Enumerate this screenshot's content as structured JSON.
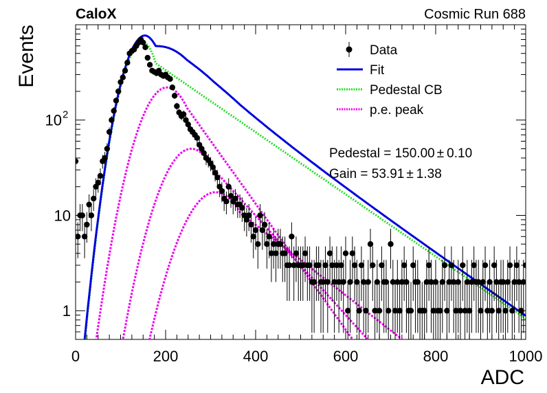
{
  "header": {
    "experiment": "CaloX",
    "run_label": "Cosmic Run 688"
  },
  "chart_data": {
    "type": "scatter",
    "xlabel": "ADC",
    "ylabel": "Events",
    "xlim": [
      0,
      1000
    ],
    "ylim": [
      0.5,
      1000
    ],
    "y_scale": "log",
    "x_ticks": [
      0,
      200,
      400,
      600,
      800,
      1000
    ],
    "x_tick_labels": [
      "0",
      "200",
      "400",
      "600",
      "800",
      "1000"
    ],
    "y_ticks": [
      1,
      10,
      100
    ],
    "y_tick_labels": [
      "1",
      "10",
      "10",
      "2"
    ],
    "y_tick_labels_display": [
      {
        "value": 1,
        "text": "1"
      },
      {
        "value": 10,
        "text": "10"
      },
      {
        "value": 100,
        "base": "10",
        "exp": "2"
      }
    ],
    "legend": {
      "placement": "top-right",
      "entries": [
        {
          "label": "Data",
          "style": "marker",
          "color": "#000000"
        },
        {
          "label": "Fit",
          "style": "line",
          "color": "#0000dd"
        },
        {
          "label": "Pedestal CB",
          "style": "dotted",
          "color": "#22dd22"
        },
        {
          "label": "p.e. peak",
          "style": "dotted",
          "color": "#ee00ee"
        }
      ]
    },
    "annotations": [
      {
        "label": "Pedestal = 150.00",
        "pm": "±",
        "err": "0.10"
      },
      {
        "label": "Gain = 53.91",
        "pm": "±",
        "err": "1.38"
      }
    ],
    "fit_params": {
      "pedestal": 150.0,
      "gain": 53.91,
      "pedestal_amplitude": 650,
      "pedestal_sigma_left": 34,
      "pedestal_sigma_right": 28,
      "pedestal_tail_slope": 0.0075,
      "pe_peaks": [
        {
          "mu": 203,
          "sigma": 45,
          "amp": 220,
          "tail_slope": 0.0152
        },
        {
          "mu": 257,
          "sigma": 50,
          "amp": 50,
          "tail_slope": 0.012
        },
        {
          "mu": 311,
          "sigma": 55,
          "amp": 17.5,
          "tail_slope": 0.0085
        }
      ]
    },
    "series": [
      {
        "name": "Data",
        "x": [
          0,
          5,
          10,
          15,
          20,
          25,
          30,
          35,
          40,
          45,
          50,
          55,
          60,
          65,
          70,
          75,
          80,
          85,
          90,
          95,
          100,
          105,
          110,
          115,
          120,
          125,
          130,
          135,
          140,
          145,
          150,
          155,
          160,
          165,
          170,
          175,
          180,
          185,
          190,
          195,
          200,
          205,
          210,
          215,
          220,
          225,
          230,
          235,
          240,
          245,
          250,
          255,
          260,
          265,
          270,
          275,
          280,
          285,
          290,
          295,
          300,
          305,
          310,
          315,
          320,
          325,
          330,
          335,
          340,
          345,
          350,
          355,
          360,
          365,
          370,
          375,
          380,
          385,
          390,
          395,
          400,
          405,
          410,
          415,
          420,
          425,
          430,
          435,
          440,
          445,
          450,
          455,
          460,
          465,
          470,
          475,
          480,
          485,
          490,
          495,
          500,
          505,
          510,
          515,
          520,
          525,
          530,
          535,
          540,
          545,
          550,
          555,
          560,
          565,
          570,
          575,
          580,
          585,
          590,
          595,
          600,
          605,
          610,
          615,
          620,
          625,
          630,
          635,
          640,
          645,
          650,
          655,
          660,
          665,
          670,
          675,
          680,
          685,
          690,
          695,
          700,
          705,
          710,
          715,
          720,
          725,
          730,
          735,
          740,
          745,
          750,
          755,
          760,
          765,
          770,
          775,
          780,
          785,
          790,
          795,
          800,
          805,
          810,
          815,
          820,
          825,
          830,
          835,
          840,
          845,
          850,
          855,
          860,
          865,
          870,
          875,
          880,
          885,
          890,
          895,
          900,
          905,
          910,
          915,
          920,
          925,
          930,
          935,
          940,
          945,
          950,
          955,
          960,
          965,
          970,
          975,
          980,
          985,
          990,
          995,
          1000
        ],
        "y": [
          37,
          6,
          10,
          10,
          6,
          8,
          13,
          10,
          15,
          20,
          22,
          26,
          37,
          40,
          50,
          75,
          100,
          125,
          160,
          200,
          250,
          280,
          330,
          400,
          500,
          530,
          550,
          600,
          650,
          700,
          650,
          580,
          450,
          380,
          330,
          320,
          310,
          330,
          300,
          290,
          300,
          280,
          270,
          220,
          180,
          140,
          120,
          110,
          115,
          100,
          90,
          80,
          75,
          70,
          65,
          55,
          50,
          45,
          40,
          38,
          35,
          32,
          28,
          25,
          20,
          18,
          15,
          14,
          20,
          16,
          14,
          15,
          13,
          13,
          12,
          10,
          9,
          10,
          8,
          6,
          7,
          5,
          10,
          7,
          8,
          5,
          6,
          4,
          5,
          4,
          5,
          5,
          4,
          4,
          3,
          3,
          6,
          3,
          4,
          3,
          3,
          3,
          4,
          3,
          3,
          2,
          2,
          3,
          3,
          2,
          2,
          3,
          2,
          4,
          3,
          2,
          3,
          2,
          3,
          2,
          4,
          1,
          2,
          4,
          3,
          2,
          1,
          3,
          2,
          1,
          2,
          5,
          3,
          1,
          2,
          1,
          3,
          2,
          2,
          1,
          5,
          2,
          1,
          2,
          1,
          2,
          3,
          2,
          1,
          1,
          3,
          2,
          2,
          1,
          1,
          1,
          2,
          3,
          2,
          1,
          2,
          1,
          1,
          2,
          3,
          1,
          2,
          3,
          2,
          1,
          2,
          1,
          3,
          1,
          2,
          1,
          2,
          3,
          2,
          2,
          1,
          2,
          3,
          1,
          2,
          1,
          3,
          2,
          1,
          2,
          2,
          1,
          2,
          3,
          1,
          2,
          3,
          2,
          1,
          2,
          3
        ]
      },
      {
        "name": "Fit",
        "function": "sum"
      },
      {
        "name": "Pedestal CB",
        "function": "pedestal"
      },
      {
        "name": "p.e. peak",
        "function": "pe_peaks"
      }
    ]
  }
}
